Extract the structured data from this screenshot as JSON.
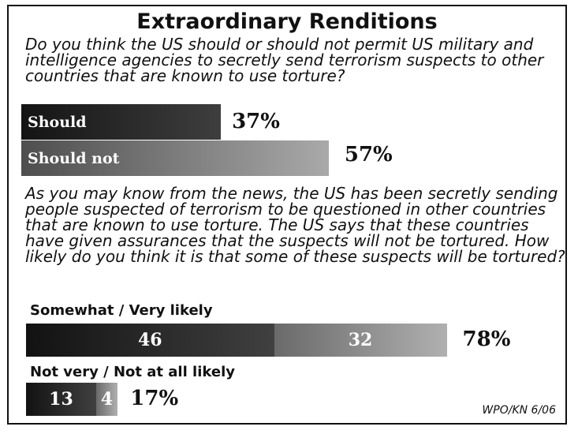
{
  "title": "Extraordinary Renditions",
  "question1": "Do you think the US should or should not permit US military and intelligence agencies to secretly send terrorism suspects to other countries that are known to use torture?",
  "question2": "As you may know from the news, the US has been secretly sending people suspected of terrorism to be questioned in other countries that are known to use torture.  The US says that these countries have given assurances that the suspects will not be tortured.  How likely do you think it is that some of these suspects will be tortured?",
  "source": "WPO/KN 6/06",
  "colors": {
    "dark": "#1a1a1a",
    "gray": "#8a8a8a"
  },
  "chart_data": [
    {
      "type": "bar",
      "orientation": "horizontal",
      "categories": [
        "Should",
        "Should not"
      ],
      "values": [
        37,
        57
      ],
      "value_labels": [
        "37%",
        "57%"
      ],
      "unit": "%",
      "xlim": [
        0,
        100
      ]
    },
    {
      "type": "bar",
      "orientation": "horizontal",
      "stacked": true,
      "categories": [
        "Somewhat / Very likely",
        "Not very / Not at all likely"
      ],
      "series": [
        {
          "values": [
            46,
            13
          ],
          "labels": [
            "46",
            "13"
          ]
        },
        {
          "values": [
            32,
            4
          ],
          "labels": [
            "32",
            "4"
          ]
        }
      ],
      "totals": [
        78,
        17
      ],
      "total_labels": [
        "78%",
        "17%"
      ],
      "unit": "%",
      "xlim": [
        0,
        100
      ]
    }
  ]
}
